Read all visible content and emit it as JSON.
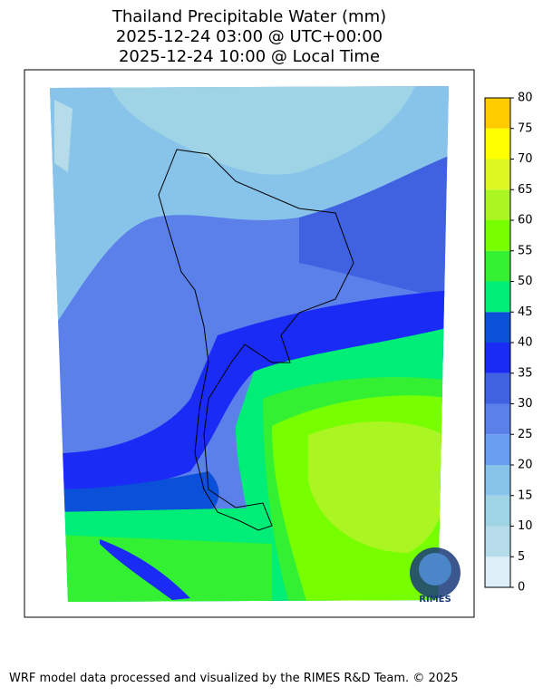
{
  "map": {
    "title": [
      "Thailand Precipitable Water (mm)",
      "2025-12-24 03:00 @ UTC+00:00",
      "2025-12-24 10:00 @ Local Time"
    ],
    "colorbar": {
      "levels": [
        0,
        5,
        10,
        15,
        20,
        25,
        30,
        35,
        40,
        45,
        50,
        55,
        60,
        65,
        70,
        75,
        80
      ],
      "colors": [
        "#ddeef8",
        "#b5dce8",
        "#9fd4e6",
        "#88c4ea",
        "#6a9ff0",
        "#5b80ea",
        "#4062e0",
        "#1a2bf5",
        "#0a50d8",
        "#00ee77",
        "#33f033",
        "#77ff00",
        "#aaf522",
        "#ddf722",
        "#ffff00",
        "#ffcc00"
      ]
    },
    "logo": "RIMES",
    "footer": "WRF model data processed and visualized by the RIMES R&D Team. © 2025"
  }
}
